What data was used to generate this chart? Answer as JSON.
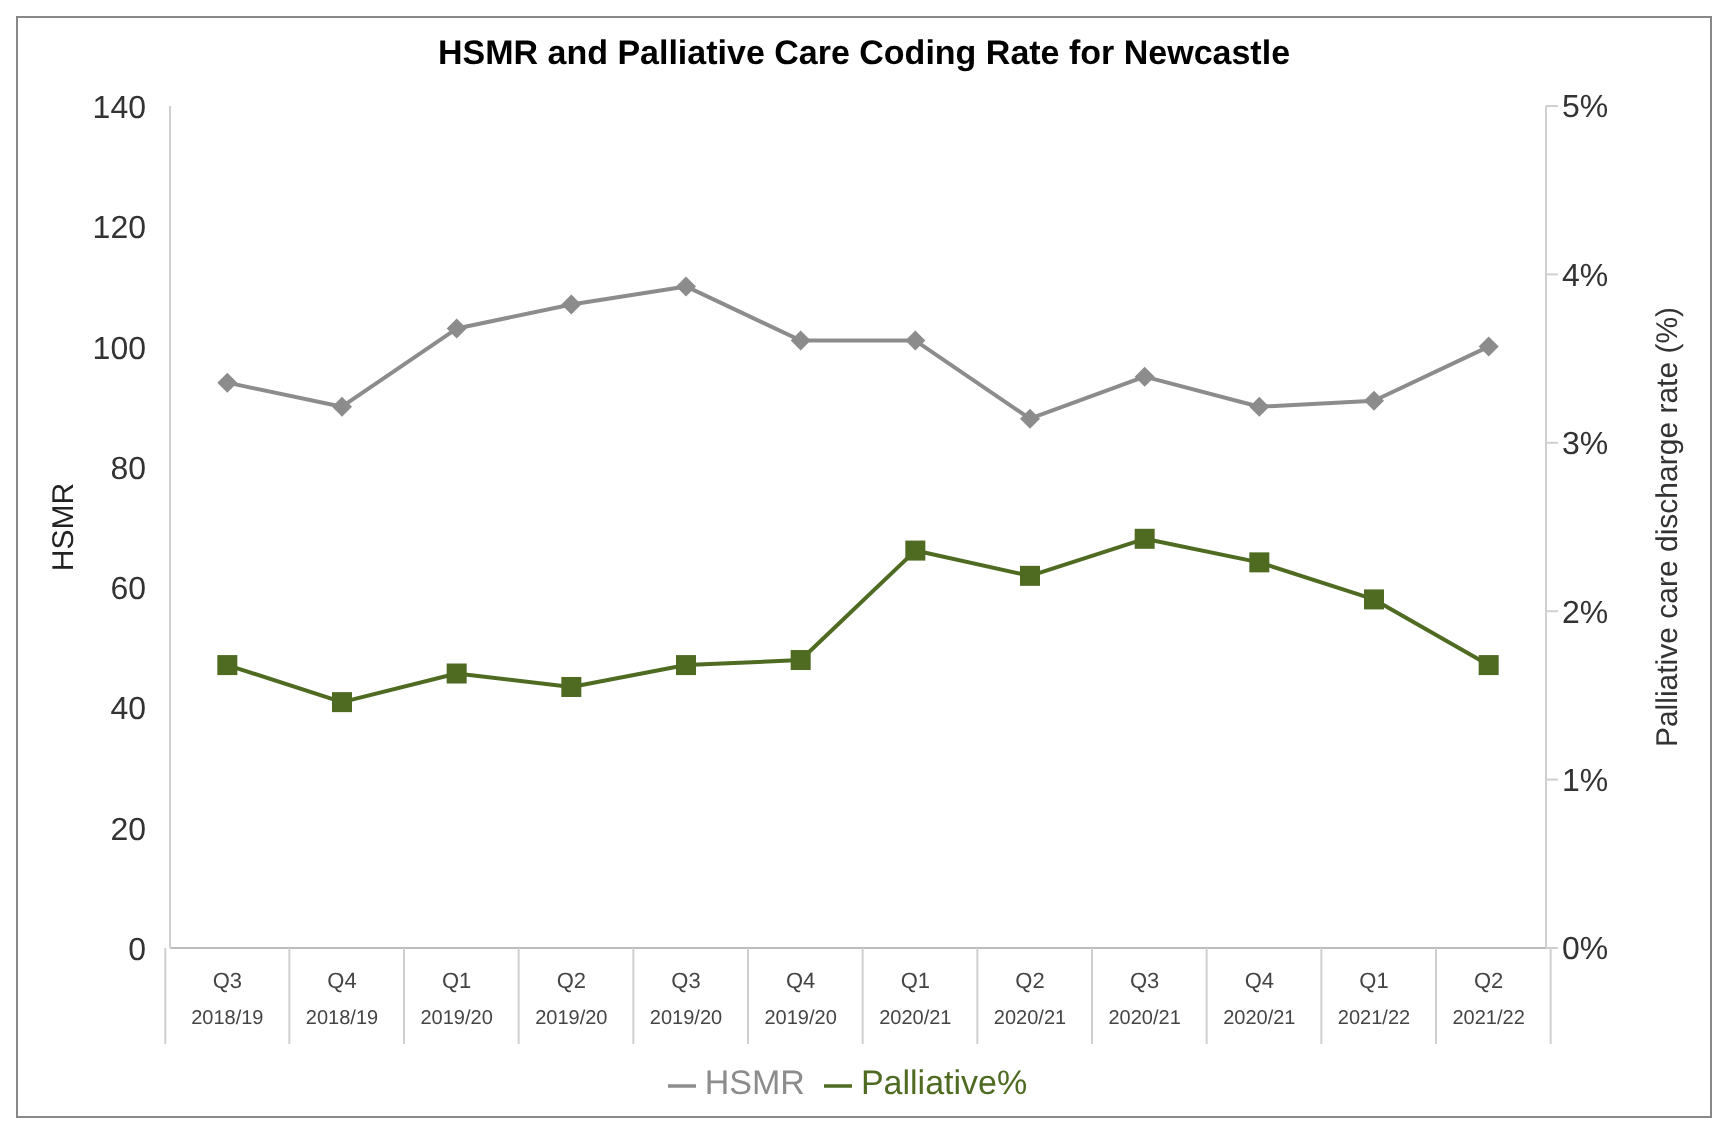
{
  "chart_data": {
    "type": "line",
    "title": "HSMR and Palliative Care Coding Rate for Newcastle",
    "ylabel": "HSMR",
    "y2label": "Palliative care discharge rate (%)",
    "categories": [
      "Q3\n2018/19",
      "Q4\n2018/19",
      "Q1\n2019/20",
      "Q2\n2019/20",
      "Q3\n2019/20",
      "Q4\n2019/20",
      "Q1\n2020/21",
      "Q2\n2020/21",
      "Q3\n2020/21",
      "Q4\n2020/21",
      "Q1\n2021/22",
      "Q2\n2021/22"
    ],
    "series": [
      {
        "name": "HSMR",
        "color": "#8c8c8c",
        "marker": "diamond",
        "values": [
          94,
          90,
          103,
          107,
          110,
          101,
          101,
          88,
          95,
          90,
          91,
          100
        ]
      },
      {
        "name": "Palliative%",
        "color": "#4f6b22",
        "marker": "square",
        "axis": "y2",
        "values": [
          1.68,
          1.46,
          1.63,
          1.55,
          1.68,
          1.71,
          2.36,
          2.21,
          2.43,
          2.29,
          2.07,
          1.68
        ]
      }
    ],
    "ylim": [
      0,
      140
    ],
    "yticks": [
      0,
      20,
      40,
      60,
      80,
      100,
      120,
      140
    ],
    "y2lim": [
      0,
      5
    ],
    "y2ticks": [
      {
        "value": 0,
        "label": "0%"
      },
      {
        "value": 1,
        "label": "1%"
      },
      {
        "value": 2,
        "label": "2%"
      },
      {
        "value": 3,
        "label": "3%"
      },
      {
        "value": 4,
        "label": "4%"
      },
      {
        "value": 5,
        "label": "5%"
      }
    ],
    "grid": false,
    "legend": "bottom",
    "line_style": "solid"
  }
}
